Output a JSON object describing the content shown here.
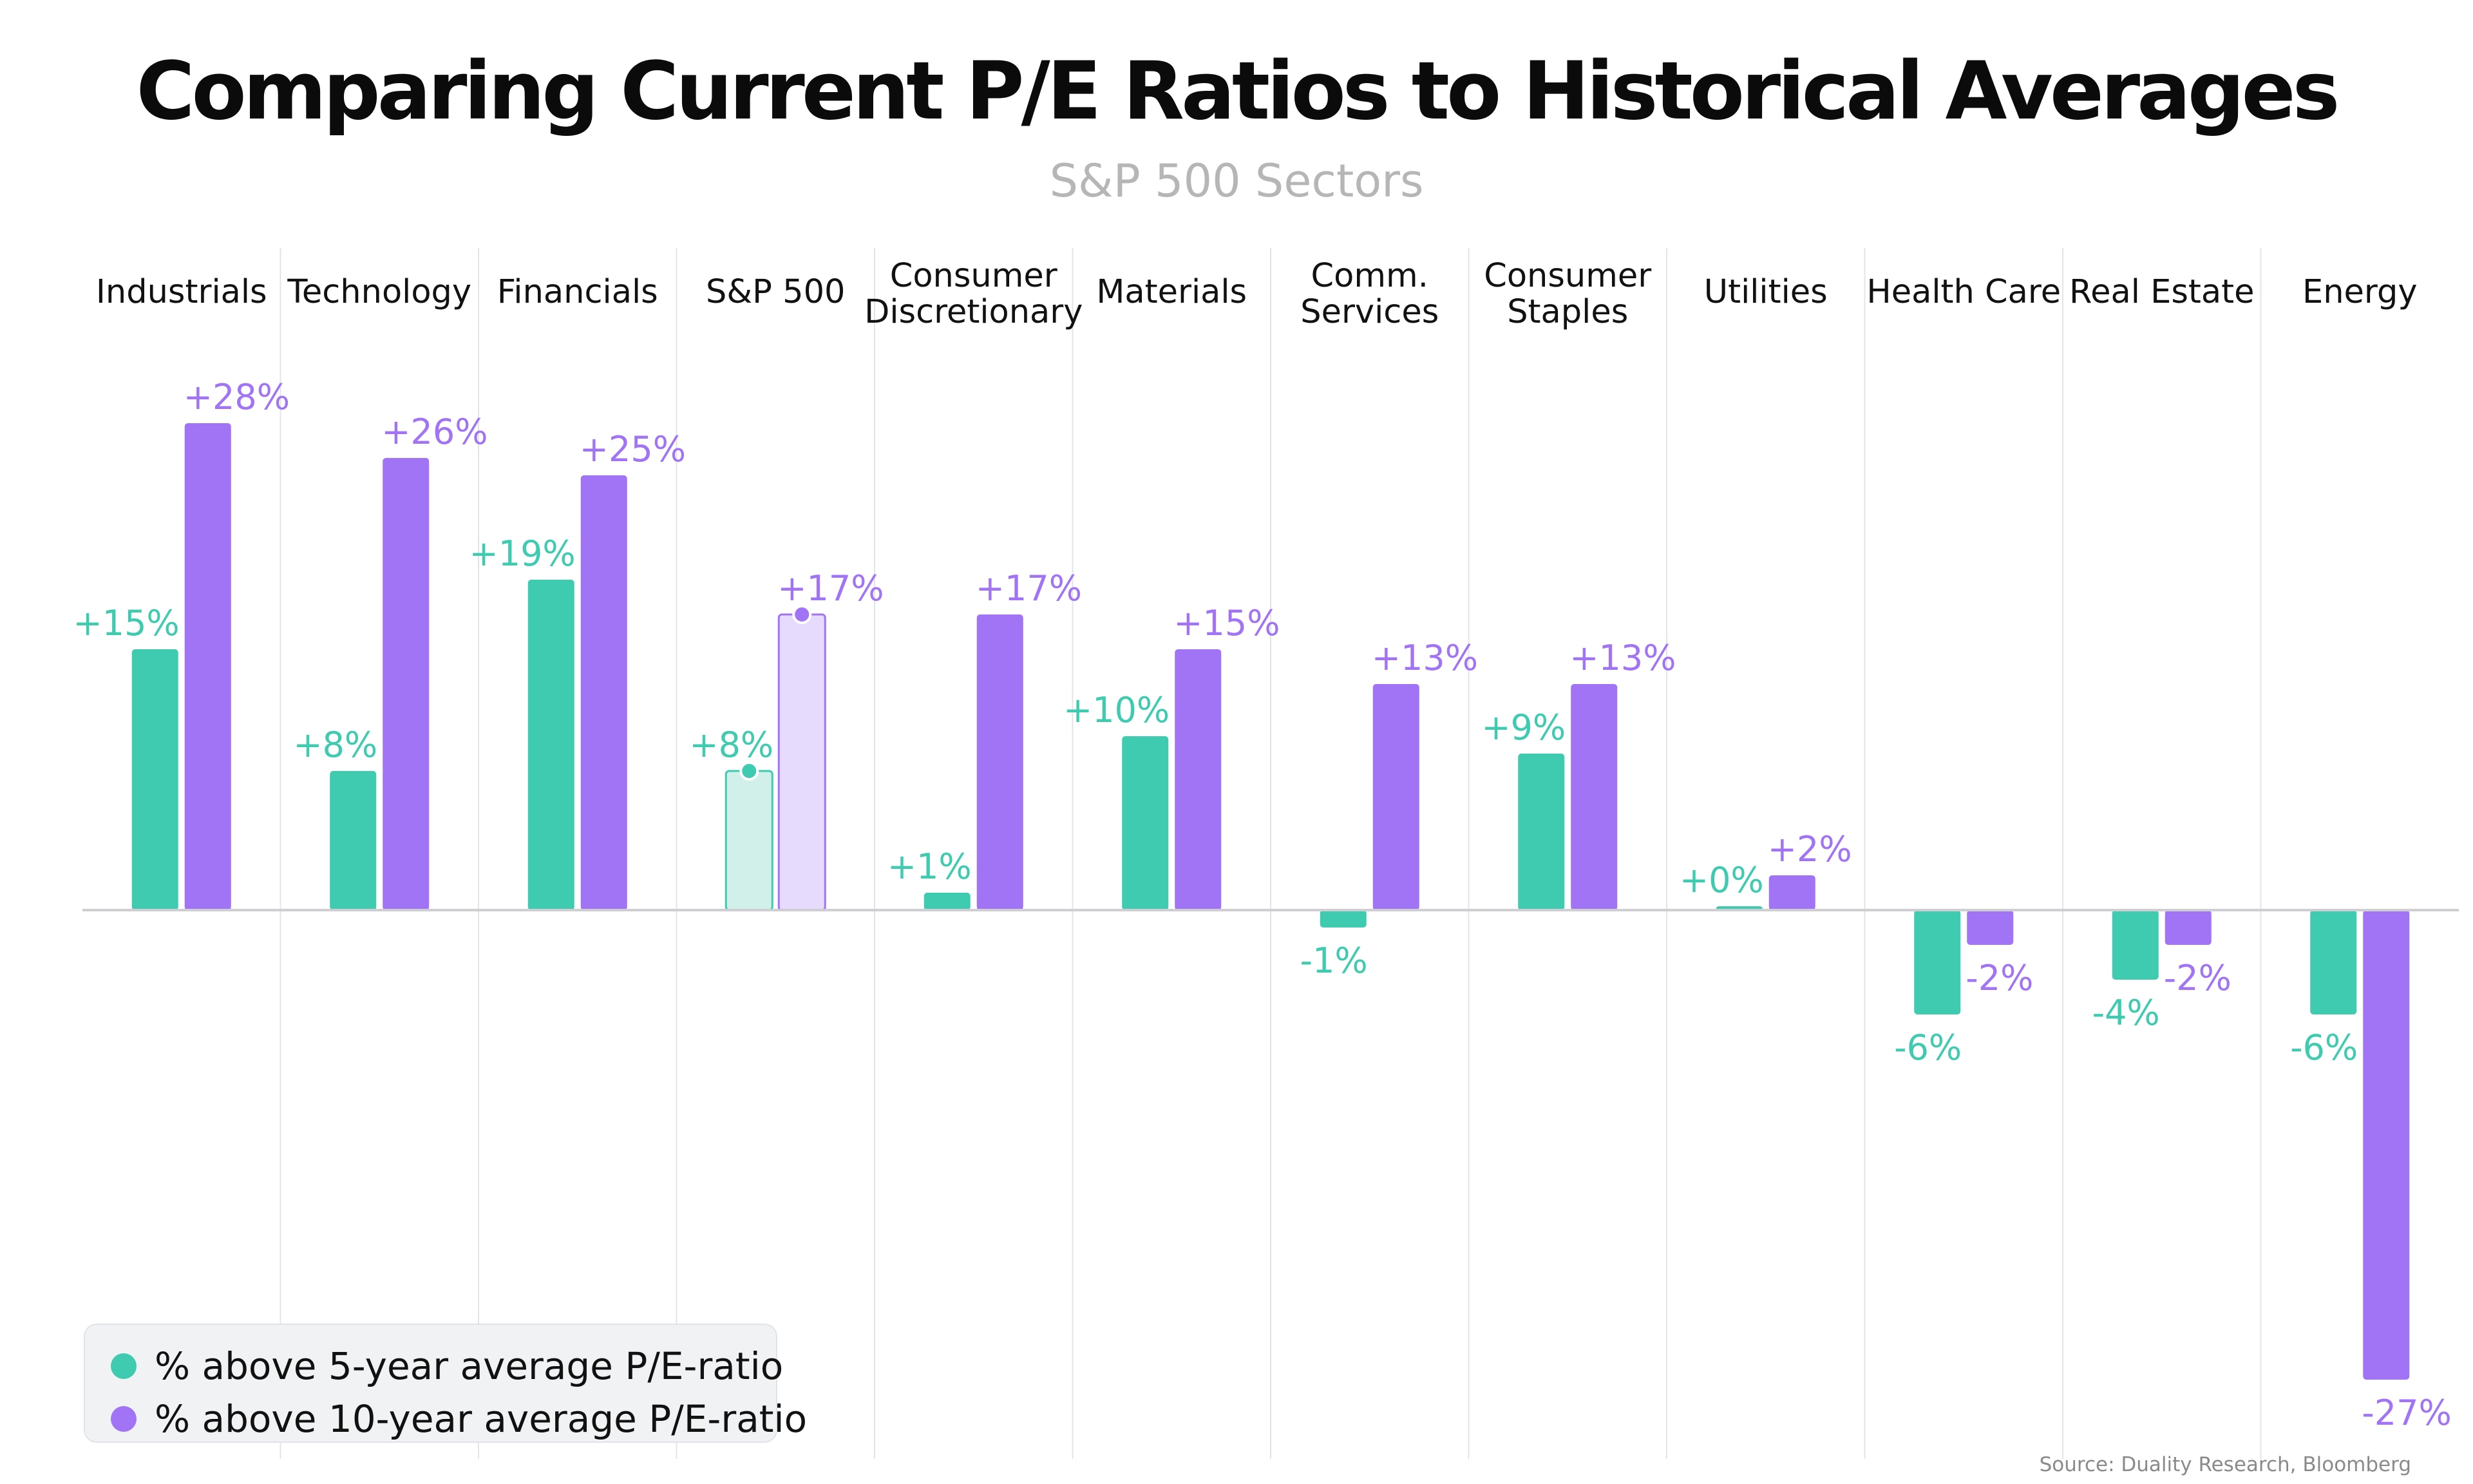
{
  "chart_data": {
    "type": "bar",
    "title": "Comparing Current P/E Ratios to Historical Averages",
    "subtitle": "S&P 500 Sectors",
    "categories": [
      [
        "Industrials"
      ],
      [
        "Technology"
      ],
      [
        "Financials"
      ],
      [
        "S&P 500"
      ],
      [
        "Consumer",
        "Discretionary"
      ],
      [
        "Materials"
      ],
      [
        "Comm.",
        "Services"
      ],
      [
        "Consumer",
        "Staples"
      ],
      [
        "Utilities"
      ],
      [
        "Health Care"
      ],
      [
        "Real Estate"
      ],
      [
        "Energy"
      ]
    ],
    "series": [
      {
        "name": "% above 5-year average P/E-ratio",
        "color": "#3ecbb0",
        "values": [
          15,
          8,
          19,
          8,
          1,
          10,
          -1,
          9,
          0,
          -6,
          -4,
          -6
        ],
        "labels": [
          "+15%",
          "+8%",
          "+19%",
          "+8%",
          "+1%",
          "+10%",
          "-1%",
          "+9%",
          "+0%",
          "-6%",
          "-4%",
          "-6%"
        ]
      },
      {
        "name": "% above 10-year average P/E-ratio",
        "color": "#a174f5",
        "values": [
          28,
          26,
          25,
          17,
          17,
          15,
          13,
          13,
          2,
          -2,
          -2,
          -27
        ],
        "labels": [
          "+28%",
          "+26%",
          "+25%",
          "+17%",
          "+17%",
          "+15%",
          "+13%",
          "+13%",
          "+2%",
          "-2%",
          "-2%",
          "-27%"
        ]
      }
    ],
    "highlight_category_index": 3,
    "highlight_colors": [
      "#d0f0e9",
      "#e6dbfd"
    ],
    "gridlines": false,
    "legend_position": "bottom-left"
  },
  "source": "Source: Duality Research, Bloomberg"
}
